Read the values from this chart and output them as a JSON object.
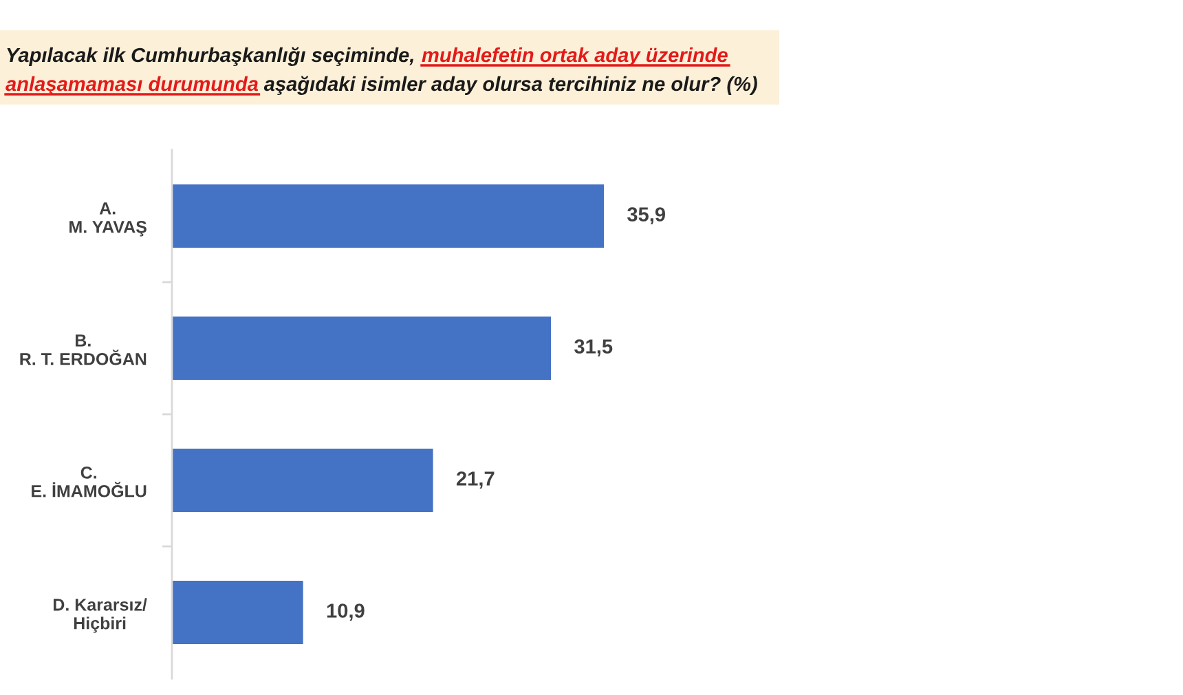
{
  "chart_data": {
    "type": "bar",
    "orientation": "horizontal",
    "title": "Yapılacak ilk Cumhurbaşkanlığı seçiminde, muhalefetin ortak aday üzerinde\nanlaşamaması durumunda aşağıdaki isimler aday olursa tercihiniz ne olur? (%)",
    "categories": [
      "A.\nM. YAVAŞ",
      "B.\nR. T. ERDOĞAN",
      "C.\nE. İMAMOĞLU",
      "D. Kararsız/\nHiçbiri"
    ],
    "values": [
      35.9,
      31.5,
      21.7,
      10.9
    ],
    "color": "#4472c4",
    "value_labels": [
      "35,9",
      "31,5",
      "21,7",
      "10,9"
    ]
  }
}
